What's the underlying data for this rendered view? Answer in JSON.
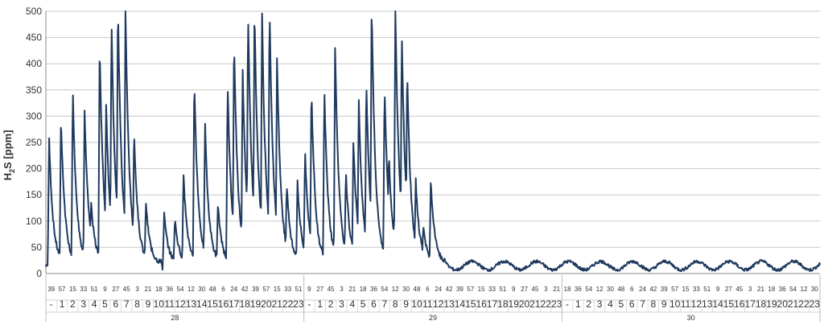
{
  "chart_data": {
    "type": "line",
    "ylabel": "H2S [ppm]",
    "ylim": [
      0,
      500
    ],
    "yticks": [
      0,
      50,
      100,
      150,
      200,
      250,
      300,
      350,
      400,
      450,
      500
    ],
    "grid": "horizontal",
    "line_color": "#1f3a5f",
    "day_labels": [
      "28",
      "29",
      "30"
    ],
    "hour_labels": [
      "-",
      "1",
      "2",
      "3",
      "4",
      "5",
      "6",
      "7",
      "8",
      "9",
      "10",
      "11",
      "12",
      "13",
      "14",
      "15",
      "16",
      "17",
      "18",
      "19",
      "20",
      "21",
      "22",
      "23"
    ],
    "minute_labels": [
      "39",
      "18",
      "57",
      "36",
      "15",
      "54",
      "33",
      "12",
      "51",
      "30",
      "9",
      "48",
      "27",
      "6",
      "45",
      "24",
      "3",
      "42",
      "21"
    ],
    "series": [
      {
        "peaks": [
          [
            0.3,
            240
          ],
          [
            1.4,
            285
          ],
          [
            2.5,
            335
          ],
          [
            3.6,
            295
          ],
          [
            4.2,
            120
          ],
          [
            5.0,
            425
          ],
          [
            5.6,
            310
          ],
          [
            6.1,
            475
          ],
          [
            6.7,
            500
          ],
          [
            7.4,
            500
          ],
          [
            8.2,
            260
          ],
          [
            9.3,
            118
          ],
          [
            11.0,
            95
          ],
          [
            12.0,
            85
          ],
          [
            12.8,
            170
          ],
          [
            13.8,
            355
          ],
          [
            14.8,
            270
          ],
          [
            16.0,
            112
          ],
          [
            16.9,
            350
          ],
          [
            17.5,
            430
          ],
          [
            18.3,
            375
          ],
          [
            18.8,
            490
          ],
          [
            19.4,
            500
          ],
          [
            20.1,
            490
          ],
          [
            20.4,
            165
          ],
          [
            20.8,
            500
          ],
          [
            21.5,
            400
          ],
          [
            22.4,
            155
          ],
          [
            23.4,
            155
          ],
          [
            24.1,
            215
          ],
          [
            24.7,
            335
          ],
          [
            25.9,
            335
          ],
          [
            26.9,
            420
          ],
          [
            27.9,
            175
          ],
          [
            28.6,
            240
          ],
          [
            29.1,
            315
          ],
          [
            29.8,
            355
          ],
          [
            30.3,
            500
          ],
          [
            31.5,
            345
          ],
          [
            31.9,
            210
          ],
          [
            32.5,
            500
          ],
          [
            33.1,
            445
          ],
          [
            33.6,
            375
          ],
          [
            34.4,
            160
          ],
          [
            35.1,
            70
          ],
          [
            35.8,
            160
          ]
        ]
      }
    ]
  }
}
